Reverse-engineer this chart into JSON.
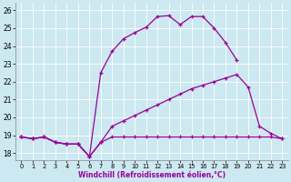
{
  "title": "",
  "xlabel": "Windchill (Refroidissement éolien,°C)",
  "xlim": [
    -0.5,
    23.5
  ],
  "ylim": [
    17.6,
    26.4
  ],
  "xticks": [
    0,
    1,
    2,
    3,
    4,
    5,
    6,
    7,
    8,
    9,
    10,
    11,
    12,
    13,
    14,
    15,
    16,
    17,
    18,
    19,
    20,
    21,
    22,
    23
  ],
  "yticks": [
    18,
    19,
    20,
    21,
    22,
    23,
    24,
    25,
    26
  ],
  "bg_color": "#cce8f0",
  "line_color": "#990099",
  "grid_color": "#aaccdd",
  "line1_x": [
    0,
    1,
    2,
    3,
    4,
    5,
    6,
    7,
    8,
    9,
    10,
    11,
    12,
    13,
    14,
    15,
    16,
    17,
    18,
    19
  ],
  "line1_y": [
    18.9,
    18.8,
    18.9,
    18.6,
    18.5,
    18.5,
    17.8,
    22.5,
    23.7,
    24.4,
    24.75,
    25.05,
    25.65,
    25.7,
    25.2,
    25.65,
    25.65,
    25.0,
    24.2,
    23.2
  ],
  "line2_x": [
    0,
    1,
    2,
    3,
    4,
    5,
    6,
    7,
    8,
    9,
    10,
    11,
    12,
    13,
    14,
    15,
    16,
    17,
    18,
    19,
    20,
    21,
    22,
    23
  ],
  "line2_y": [
    18.9,
    18.8,
    18.9,
    18.6,
    18.5,
    18.5,
    17.8,
    18.6,
    19.5,
    19.8,
    20.1,
    20.4,
    20.7,
    21.0,
    21.3,
    21.6,
    21.8,
    22.0,
    22.2,
    22.4,
    21.7,
    19.5,
    19.1,
    18.8
  ],
  "line3_x": [
    0,
    1,
    2,
    3,
    4,
    5,
    6,
    7,
    8,
    9,
    10,
    11,
    12,
    13,
    14,
    15,
    16,
    17,
    18,
    19,
    20,
    21,
    22,
    23
  ],
  "line3_y": [
    18.9,
    18.8,
    18.9,
    18.6,
    18.5,
    18.5,
    17.8,
    18.6,
    18.9,
    18.9,
    18.9,
    18.9,
    18.9,
    18.9,
    18.9,
    18.9,
    18.9,
    18.9,
    18.9,
    18.9,
    18.9,
    18.9,
    18.9,
    18.8
  ]
}
